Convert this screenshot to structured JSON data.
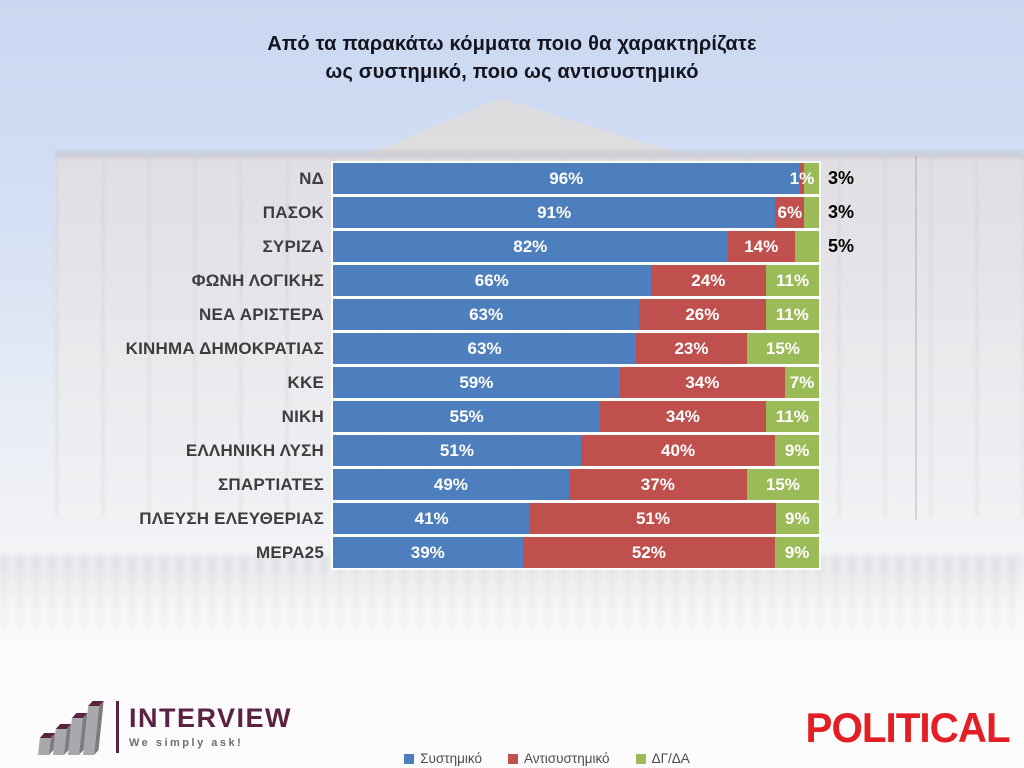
{
  "chart_data": {
    "type": "bar",
    "orientation": "horizontal-stacked",
    "title": "Από τα παρακάτω κόμματα ποιο θα χαρακτηρίζατε\nως συστημικό, ποιο ως αντισυστημικό",
    "categories": [
      "ΝΔ",
      "ΠΑΣΟΚ",
      "ΣΥΡΙΖΑ",
      "ΦΩΝΗ ΛΟΓΙΚΗΣ",
      "ΝΕΑ ΑΡΙΣΤΕΡΑ",
      "ΚΙΝΗΜΑ ΔΗΜΟΚΡΑΤΙΑΣ",
      "ΚΚΕ",
      "ΝΙΚΗ",
      "ΕΛΛΗΝΙΚΗ ΛΥΣΗ",
      "ΣΠΑΡΤΙΑΤΕΣ",
      "ΠΛΕΥΣΗ ΕΛΕΥΘΕΡΙΑΣ",
      "ΜΕΡΑ25"
    ],
    "series": [
      {
        "name": "Συστημικό",
        "color": "#4d7ebd",
        "values": [
          96,
          91,
          82,
          66,
          63,
          63,
          59,
          55,
          51,
          49,
          41,
          39
        ]
      },
      {
        "name": "Αντισυστημικό",
        "color": "#c0504d",
        "values": [
          1,
          6,
          14,
          24,
          26,
          23,
          34,
          34,
          40,
          37,
          51,
          52
        ]
      },
      {
        "name": "ΔΓ/ΔΑ",
        "color": "#9bba58",
        "values": [
          3,
          3,
          5,
          11,
          11,
          15,
          7,
          11,
          9,
          15,
          9,
          9
        ]
      }
    ],
    "value_suffix": "%",
    "xlim": [
      0,
      100
    ],
    "grid": false,
    "legend_position": "bottom",
    "label_colors": {
      "inside": "#ffffff",
      "outside": "#000000",
      "category": "#3d3d40"
    }
  },
  "footer": {
    "interview": {
      "name": "INTERVIEW",
      "tagline": "We simply ask!",
      "brand_color": "#5c2243"
    },
    "political": {
      "name": "POLITICAL",
      "brand_color": "#e41e25"
    }
  }
}
